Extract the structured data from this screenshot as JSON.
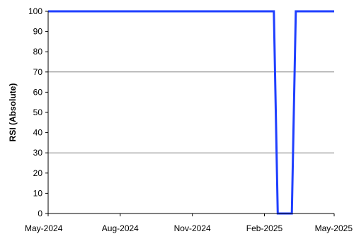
{
  "chart_data": {
    "type": "line",
    "title": "",
    "xlabel": "",
    "ylabel": "RSI (Absolute)",
    "ylim": [
      0,
      100
    ],
    "yticks": [
      0,
      10,
      20,
      30,
      40,
      50,
      60,
      70,
      80,
      90,
      100
    ],
    "xlim": [
      "2024-05-01",
      "2025-05-01"
    ],
    "xticks": [
      {
        "date": "2024-05-01",
        "label": "May-2024"
      },
      {
        "date": "2024-08-01",
        "label": "Aug-2024"
      },
      {
        "date": "2024-11-01",
        "label": "Nov-2024"
      },
      {
        "date": "2025-02-01",
        "label": "Feb-2025"
      },
      {
        "date": "2025-05-01",
        "label": "May-2025"
      }
    ],
    "reference_lines": [
      30,
      70
    ],
    "series": [
      {
        "color": "#1f3fff",
        "points": [
          {
            "x": "2024-05-01",
            "y": 100
          },
          {
            "x": "2025-02-13",
            "y": 100
          },
          {
            "x": "2025-02-18",
            "y": 0
          },
          {
            "x": "2025-03-08",
            "y": 0
          },
          {
            "x": "2025-03-13",
            "y": 100
          },
          {
            "x": "2025-05-01",
            "y": 100
          }
        ]
      }
    ],
    "grid": false,
    "legend": "none"
  }
}
